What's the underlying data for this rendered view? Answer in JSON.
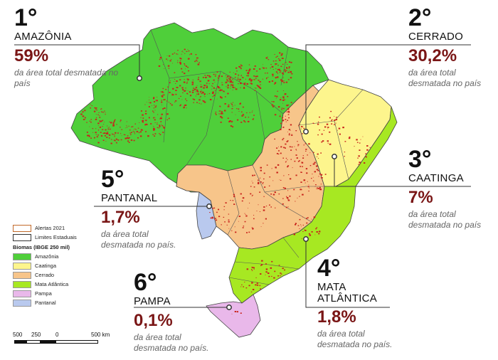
{
  "callouts": [
    {
      "rank": "1°",
      "biome": "AMAZÔNIA",
      "pct": "59%",
      "note": "da área total desmatada no país"
    },
    {
      "rank": "2°",
      "biome": "CERRADO",
      "pct": "30,2%",
      "note": "da área total desmatada no país"
    },
    {
      "rank": "3°",
      "biome": "CAATINGA",
      "pct": "7%",
      "note": "da área total desmatada no país"
    },
    {
      "rank": "4°",
      "biome": "MATA ATLÂNTICA",
      "pct": "1,8%",
      "note": "da área total desmatada no país."
    },
    {
      "rank": "5°",
      "biome": "PANTANAL",
      "pct": "1,7%",
      "note": "da área total desmatada no país."
    },
    {
      "rank": "6°",
      "biome": "PAMPA",
      "pct": "0,1%",
      "note": "da área total desmatada no país."
    }
  ],
  "legend": {
    "alerts": "Alertas 2021",
    "limits": "Limites Estaduais",
    "heading": "Biomas (IBGE 250 mil)",
    "biomes": [
      {
        "label": "Amazônia",
        "color": "#4fcf3a"
      },
      {
        "label": "Caatinga",
        "color": "#fdf58d"
      },
      {
        "label": "Cerrado",
        "color": "#f7c58a"
      },
      {
        "label": "Mata Atlântica",
        "color": "#a7e822"
      },
      {
        "label": "Pampa",
        "color": "#e9b8ea"
      },
      {
        "label": "Pantanal",
        "color": "#b9c9ee"
      }
    ]
  },
  "scale": {
    "labels": [
      "500",
      "250",
      "0",
      "500 km"
    ]
  },
  "colors": {
    "alert": "#c8231b",
    "accent": "#7a1616"
  }
}
